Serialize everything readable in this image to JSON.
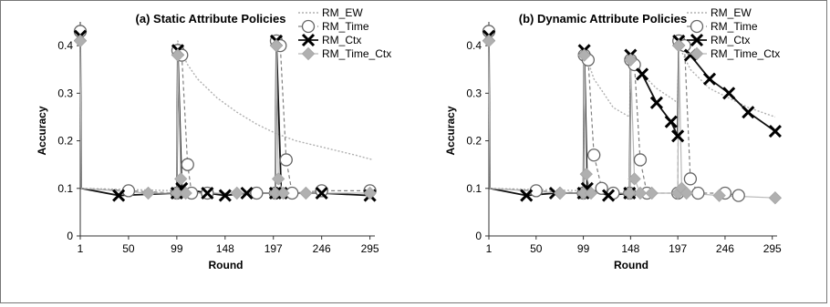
{
  "chart_data": [
    {
      "type": "line",
      "title": "(a) Static Attribute Policies",
      "xlabel": "Round",
      "ylabel": "Accuracy",
      "xticks": [
        1,
        50,
        99,
        148,
        197,
        246,
        295
      ],
      "yticks": [
        0,
        0.1,
        0.2,
        0.3,
        0.4
      ],
      "xlim": [
        1,
        300
      ],
      "ylim": [
        0,
        0.45
      ],
      "legend": [
        "RM_EW",
        "RM_Time",
        "RM_Ctx",
        "RM_Time_Ctx"
      ],
      "legend_position": "top-right",
      "series": [
        {
          "name": "RM_EW",
          "x": [
            1,
            2,
            99,
            100,
            103,
            110,
            120,
            140,
            160,
            180,
            200,
            220,
            240,
            260,
            280,
            298
          ],
          "y": [
            0.42,
            0.1,
            0.095,
            0.41,
            0.39,
            0.36,
            0.33,
            0.29,
            0.26,
            0.235,
            0.215,
            0.2,
            0.19,
            0.18,
            0.17,
            0.16
          ]
        },
        {
          "name": "RM_Time",
          "x": [
            1,
            2,
            50,
            99,
            100,
            104,
            110,
            114,
            130,
            180,
            199,
            200,
            204,
            210,
            216,
            246,
            295
          ],
          "y": [
            0.43,
            0.1,
            0.095,
            0.09,
            0.39,
            0.38,
            0.15,
            0.09,
            0.09,
            0.09,
            0.09,
            0.41,
            0.4,
            0.16,
            0.09,
            0.095,
            0.095
          ]
        },
        {
          "name": "RM_Ctx",
          "x": [
            1,
            2,
            40,
            99,
            100,
            104,
            130,
            148,
            170,
            199,
            200,
            205,
            246,
            295
          ],
          "y": [
            0.42,
            0.1,
            0.085,
            0.09,
            0.39,
            0.1,
            0.09,
            0.085,
            0.09,
            0.09,
            0.41,
            0.09,
            0.09,
            0.085
          ]
        },
        {
          "name": "RM_Time_Ctx",
          "x": [
            1,
            2,
            70,
            99,
            100,
            103,
            108,
            160,
            199,
            200,
            202,
            207,
            230,
            295
          ],
          "y": [
            0.41,
            0.1,
            0.09,
            0.09,
            0.38,
            0.12,
            0.09,
            0.09,
            0.09,
            0.4,
            0.12,
            0.09,
            0.09,
            0.09
          ]
        }
      ]
    },
    {
      "type": "line",
      "title": "(b) Dynamic Attribute Policies",
      "xlabel": "Round",
      "ylabel": "Accuracy",
      "xticks": [
        1,
        50,
        99,
        148,
        197,
        246,
        295
      ],
      "yticks": [
        0,
        0.1,
        0.2,
        0.3,
        0.4
      ],
      "xlim": [
        1,
        300
      ],
      "ylim": [
        0,
        0.45
      ],
      "legend": [
        "RM_EW",
        "RM_Time",
        "RM_Ctx",
        "RM_Time_Ctx"
      ],
      "legend_position": "top-right",
      "series": [
        {
          "name": "RM_EW",
          "x": [
            1,
            2,
            99,
            100,
            110,
            120,
            130,
            147,
            148,
            160,
            175,
            190,
            197,
            198,
            210,
            230,
            250,
            270,
            298
          ],
          "y": [
            0.42,
            0.1,
            0.095,
            0.39,
            0.33,
            0.3,
            0.27,
            0.25,
            0.37,
            0.34,
            0.31,
            0.29,
            0.28,
            0.4,
            0.35,
            0.31,
            0.29,
            0.27,
            0.25
          ]
        },
        {
          "name": "RM_Time",
          "x": [
            1,
            2,
            50,
            99,
            100,
            104,
            110,
            118,
            130,
            147,
            148,
            152,
            158,
            165,
            197,
            198,
            204,
            210,
            218,
            246,
            260
          ],
          "y": [
            0.43,
            0.1,
            0.095,
            0.09,
            0.38,
            0.37,
            0.17,
            0.1,
            0.09,
            0.09,
            0.37,
            0.36,
            0.16,
            0.09,
            0.09,
            0.41,
            0.4,
            0.12,
            0.09,
            0.09,
            0.085
          ]
        },
        {
          "name": "RM_Ctx",
          "x": [
            1,
            2,
            40,
            70,
            99,
            100,
            103,
            125,
            147,
            148,
            160,
            175,
            190,
            197,
            198,
            210,
            230,
            250,
            270,
            298
          ],
          "y": [
            0.42,
            0.1,
            0.085,
            0.09,
            0.09,
            0.39,
            0.1,
            0.085,
            0.09,
            0.38,
            0.34,
            0.28,
            0.24,
            0.21,
            0.41,
            0.38,
            0.33,
            0.3,
            0.26,
            0.22
          ]
        },
        {
          "name": "RM_Time_Ctx",
          "x": [
            1,
            2,
            75,
            99,
            100,
            102,
            107,
            147,
            148,
            152,
            158,
            170,
            197,
            198,
            201,
            206,
            240,
            298
          ],
          "y": [
            0.41,
            0.1,
            0.09,
            0.09,
            0.38,
            0.13,
            0.09,
            0.09,
            0.37,
            0.12,
            0.09,
            0.09,
            0.09,
            0.4,
            0.1,
            0.09,
            0.085,
            0.08
          ]
        }
      ]
    }
  ]
}
